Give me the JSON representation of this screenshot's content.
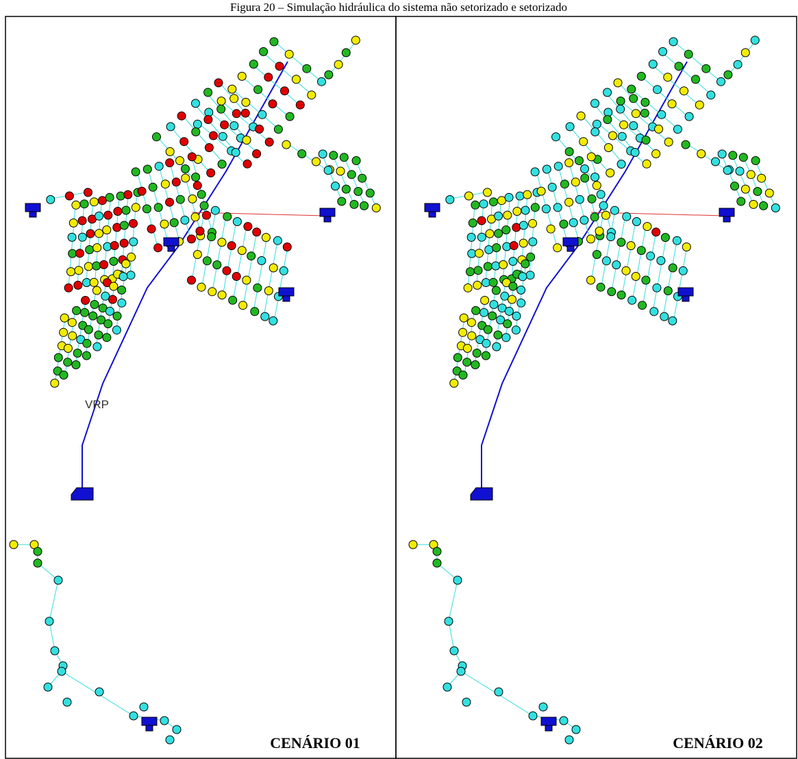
{
  "caption": "Figura 20 – Simulação hidráulica do sistema não setorizado e setorizado",
  "panels": [
    {
      "label": "CENÁRIO 01",
      "valve_label": "VRP"
    },
    {
      "label": "CENÁRIO 02"
    }
  ]
}
